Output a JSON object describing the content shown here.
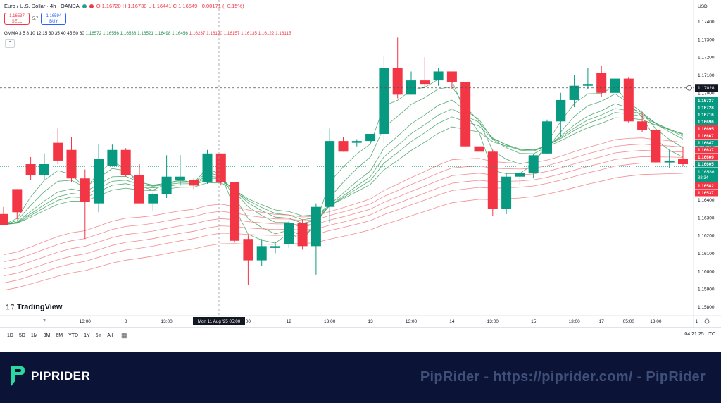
{
  "header": {
    "symbol": "Euro / U.S. Dollar · 4h · OANDA",
    "ohlc": "O 1.16720  H 1.16738  L 1.16441  C 1.16549  −0.00171 (−0.15%)",
    "status_colors": [
      "#2a9d8f",
      "#f23645"
    ]
  },
  "trade": {
    "sell_price": "1.16537",
    "sell_label": "SELL",
    "spread": "5.7",
    "buy_price": "1.16594",
    "buy_label": "BUY"
  },
  "indicator": {
    "name": "GMMA",
    "params": "3 5 8 10 12 15 30 35 40 45 50 60",
    "green_values": "1.16572  1.16556  1.16538  1.16521  1.16498  1.16456",
    "red_values": "1.16237  1.16190  1.16157  1.16135  1.16122  1.16115"
  },
  "currency": "USD",
  "crosshair_label": "Mon 11 Aug '25  05:00",
  "brand": "TradingView",
  "toolbar": {
    "timeframes": [
      "1D",
      "5D",
      "1M",
      "3M",
      "6M",
      "YTD",
      "1Y",
      "5Y",
      "All"
    ],
    "clock": "04:21:25 UTC"
  },
  "banner": {
    "logo_text": "PIPRIDER",
    "watermark": "PipRider - https://piprider.com/ - PipRider"
  },
  "chart_data": {
    "type": "candlestick",
    "ylim": [
      1.1575,
      1.1745
    ],
    "y_ticks": [
      "1.17400",
      "1.17300",
      "1.17200",
      "1.17100",
      "1.17000",
      "1.16900",
      "1.16800",
      "1.16700",
      "1.16600",
      "1.16500",
      "1.16400",
      "1.16300",
      "1.16200",
      "1.16100",
      "1.16000",
      "1.15900",
      "1.15800"
    ],
    "x_ticks": [
      {
        "i": 3,
        "label": "7"
      },
      {
        "i": 6,
        "label": "13:00"
      },
      {
        "i": 9,
        "label": "8"
      },
      {
        "i": 12,
        "label": "13:00"
      },
      {
        "i": 18,
        "label": "00"
      },
      {
        "i": 21,
        "label": "12"
      },
      {
        "i": 24,
        "label": "13:00"
      },
      {
        "i": 27,
        "label": "13"
      },
      {
        "i": 30,
        "label": "13:00"
      },
      {
        "i": 33,
        "label": "14"
      },
      {
        "i": 36,
        "label": "13:00"
      },
      {
        "i": 39,
        "label": "15"
      },
      {
        "i": 42,
        "label": "13:00"
      },
      {
        "i": 44,
        "label": "17"
      },
      {
        "i": 46,
        "label": "05:00"
      },
      {
        "i": 48,
        "label": "13:00"
      },
      {
        "i": 51,
        "label": "1"
      }
    ],
    "crosshair_price": "1.17028",
    "last_price": "1.16586",
    "countdown": "38:34",
    "candles": [
      [
        1.1632,
        1.1636,
        1.1626,
        1.1626
      ],
      [
        1.1646,
        1.1646,
        1.1629,
        1.1633
      ],
      [
        1.166,
        1.1664,
        1.1651,
        1.1654
      ],
      [
        1.1654,
        1.1666,
        1.1651,
        1.166
      ],
      [
        1.1672,
        1.168,
        1.166,
        1.1662
      ],
      [
        1.1668,
        1.1675,
        1.165,
        1.1652
      ],
      [
        1.1652,
        1.1657,
        1.1618,
        1.1639
      ],
      [
        1.1638,
        1.1671,
        1.1633,
        1.1663
      ],
      [
        1.1659,
        1.1671,
        1.1659,
        1.1668
      ],
      [
        1.1668,
        1.1669,
        1.1653,
        1.1654
      ],
      [
        1.1654,
        1.166,
        1.1638,
        1.1638
      ],
      [
        1.1638,
        1.1644,
        1.1634,
        1.1643
      ],
      [
        1.1643,
        1.1665,
        1.1641,
        1.1653
      ],
      [
        1.1651,
        1.1665,
        1.1648,
        1.1653
      ],
      [
        1.1651,
        1.1652,
        1.1646,
        1.1648
      ],
      [
        1.165,
        1.1668,
        1.1649,
        1.1666
      ],
      [
        1.1666,
        1.1666,
        1.1648,
        1.165
      ],
      [
        1.165,
        1.165,
        1.1616,
        1.1617
      ],
      [
        1.1618,
        1.162,
        1.1592,
        1.1606
      ],
      [
        1.1606,
        1.1618,
        1.1603,
        1.1614
      ],
      [
        1.1613,
        1.1616,
        1.161,
        1.1614
      ],
      [
        1.1615,
        1.1628,
        1.1613,
        1.1627
      ],
      [
        1.1627,
        1.1629,
        1.1612,
        1.1614
      ],
      [
        1.1614,
        1.1638,
        1.1598,
        1.1636
      ],
      [
        1.1636,
        1.168,
        1.1627,
        1.1673
      ],
      [
        1.1673,
        1.1675,
        1.1667,
        1.1667
      ],
      [
        1.1672,
        1.1674,
        1.167,
        1.1673
      ],
      [
        1.1673,
        1.1677,
        1.1672,
        1.1677
      ],
      [
        1.1677,
        1.1721,
        1.1672,
        1.1714
      ],
      [
        1.1714,
        1.1731,
        1.1697,
        1.1699
      ],
      [
        1.1699,
        1.1712,
        1.1699,
        1.1707
      ],
      [
        1.1707,
        1.172,
        1.1703,
        1.1705
      ],
      [
        1.1707,
        1.1714,
        1.1704,
        1.1712
      ],
      [
        1.1712,
        1.1712,
        1.1702,
        1.1706
      ],
      [
        1.1706,
        1.1706,
        1.167,
        1.167
      ],
      [
        1.167,
        1.1696,
        1.1663,
        1.1667
      ],
      [
        1.1667,
        1.1668,
        1.1631,
        1.1635
      ],
      [
        1.1635,
        1.1655,
        1.1632,
        1.1653
      ],
      [
        1.1653,
        1.1656,
        1.1648,
        1.1655
      ],
      [
        1.1655,
        1.1666,
        1.1652,
        1.1665
      ],
      [
        1.1666,
        1.1685,
        1.1666,
        1.1684
      ],
      [
        1.1684,
        1.17,
        1.1675,
        1.1696
      ],
      [
        1.1696,
        1.171,
        1.1692,
        1.1704
      ],
      [
        1.1704,
        1.1714,
        1.1702,
        1.1705
      ],
      [
        1.1711,
        1.1715,
        1.1698,
        1.17
      ],
      [
        1.17,
        1.1709,
        1.1694,
        1.1708
      ],
      [
        1.1708,
        1.1709,
        1.1683,
        1.1684
      ],
      [
        1.1684,
        1.1689,
        1.1678,
        1.1679
      ],
      [
        1.1679,
        1.1681,
        1.166,
        1.1661
      ],
      [
        1.1661,
        1.1668,
        1.1658,
        1.1662
      ],
      [
        1.1663,
        1.167,
        1.1659,
        1.166
      ]
    ],
    "price_tags": [
      {
        "value": "1.16737",
        "color": "#089981"
      },
      {
        "value": "1.16728",
        "color": "#089981"
      },
      {
        "value": "1.16716",
        "color": "#089981"
      },
      {
        "value": "1.16696",
        "color": "#089981"
      },
      {
        "value": "1.16695",
        "color": "#f23645"
      },
      {
        "value": "1.16667",
        "color": "#f23645"
      },
      {
        "value": "1.16647",
        "color": "#089981"
      },
      {
        "value": "1.16637",
        "color": "#f23645"
      },
      {
        "value": "1.16609",
        "color": "#f23645"
      },
      {
        "value": "1.16605",
        "color": "#089981"
      },
      {
        "value": "1.16582",
        "color": "#f23645"
      },
      {
        "value": "1.16537",
        "color": "#f23645"
      }
    ],
    "colors": {
      "up": "#089981",
      "down": "#f23645",
      "short_ma": "#3a9d5d",
      "long_ma": "#f0787d"
    }
  }
}
